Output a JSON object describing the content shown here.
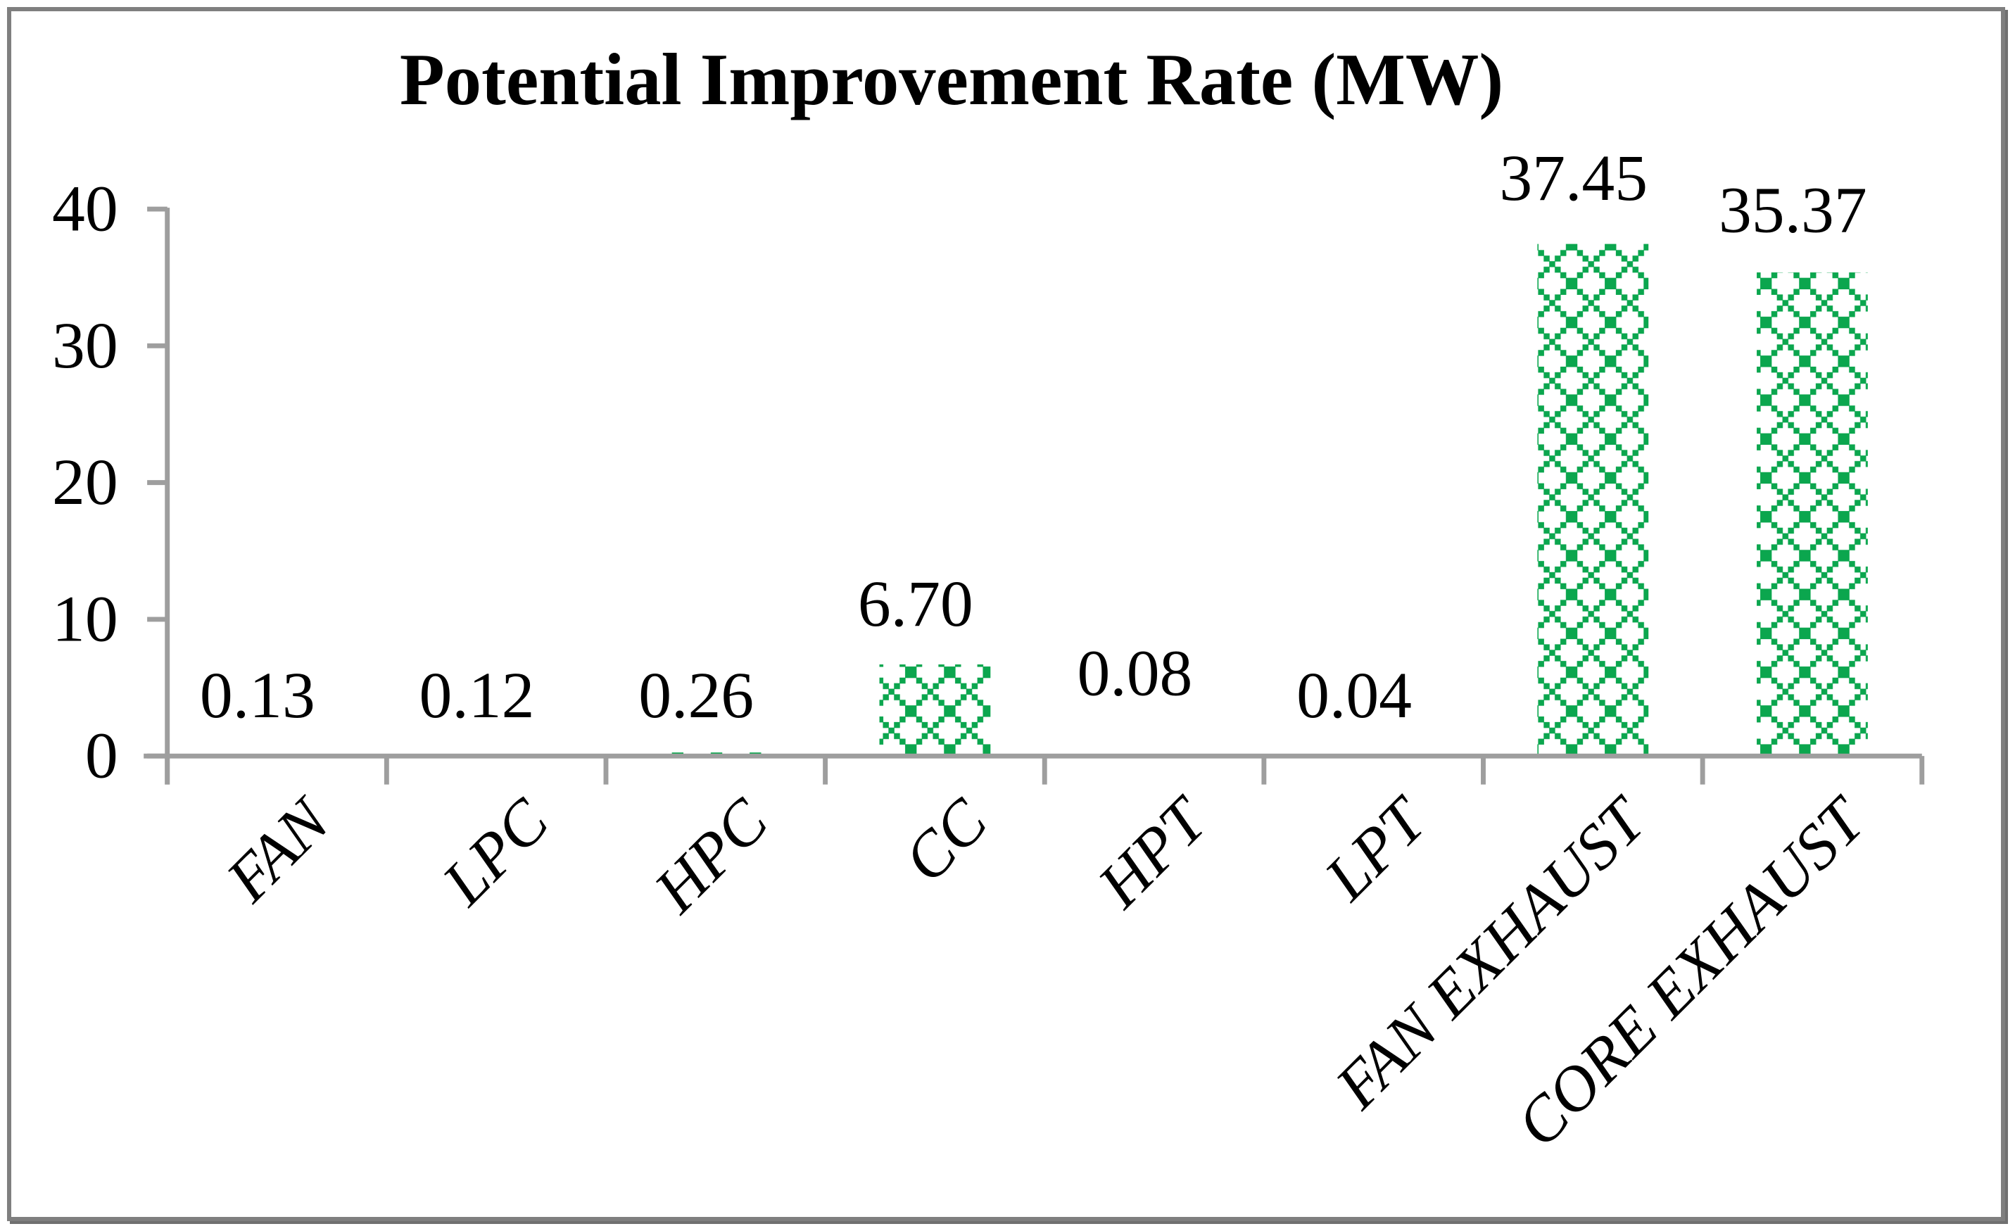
{
  "figure": {
    "title": "Potential Improvement Rate (MW)"
  },
  "chart_data": {
    "type": "bar",
    "title": "Potential Improvement Rate (MW)",
    "categories": [
      "FAN",
      "LPC",
      "HPC",
      "CC",
      "HPT",
      "LPT",
      "FAN EXHAUST",
      "CORE EXHAUST"
    ],
    "values": [
      0.13,
      0.12,
      0.26,
      6.7,
      0.08,
      0.04,
      37.45,
      35.37
    ],
    "data_labels": [
      "0.13",
      "0.12",
      "0.26",
      "6.70",
      "0.08",
      "0.04",
      "37.45",
      "35.37"
    ],
    "xlabel": "",
    "ylabel": "",
    "y_ticks": [
      0,
      10,
      20,
      30,
      40
    ],
    "ylim": [
      0,
      40
    ],
    "legend": "none",
    "gridlines": false,
    "bar_fill_style": "green dotted diagonal-crosshatch pattern on white",
    "colors": {
      "bar_green": "#0BA64E",
      "axis_gray": "#9E9E9E",
      "text_black": "#000000",
      "border_gray": "#7F7F7F"
    }
  }
}
